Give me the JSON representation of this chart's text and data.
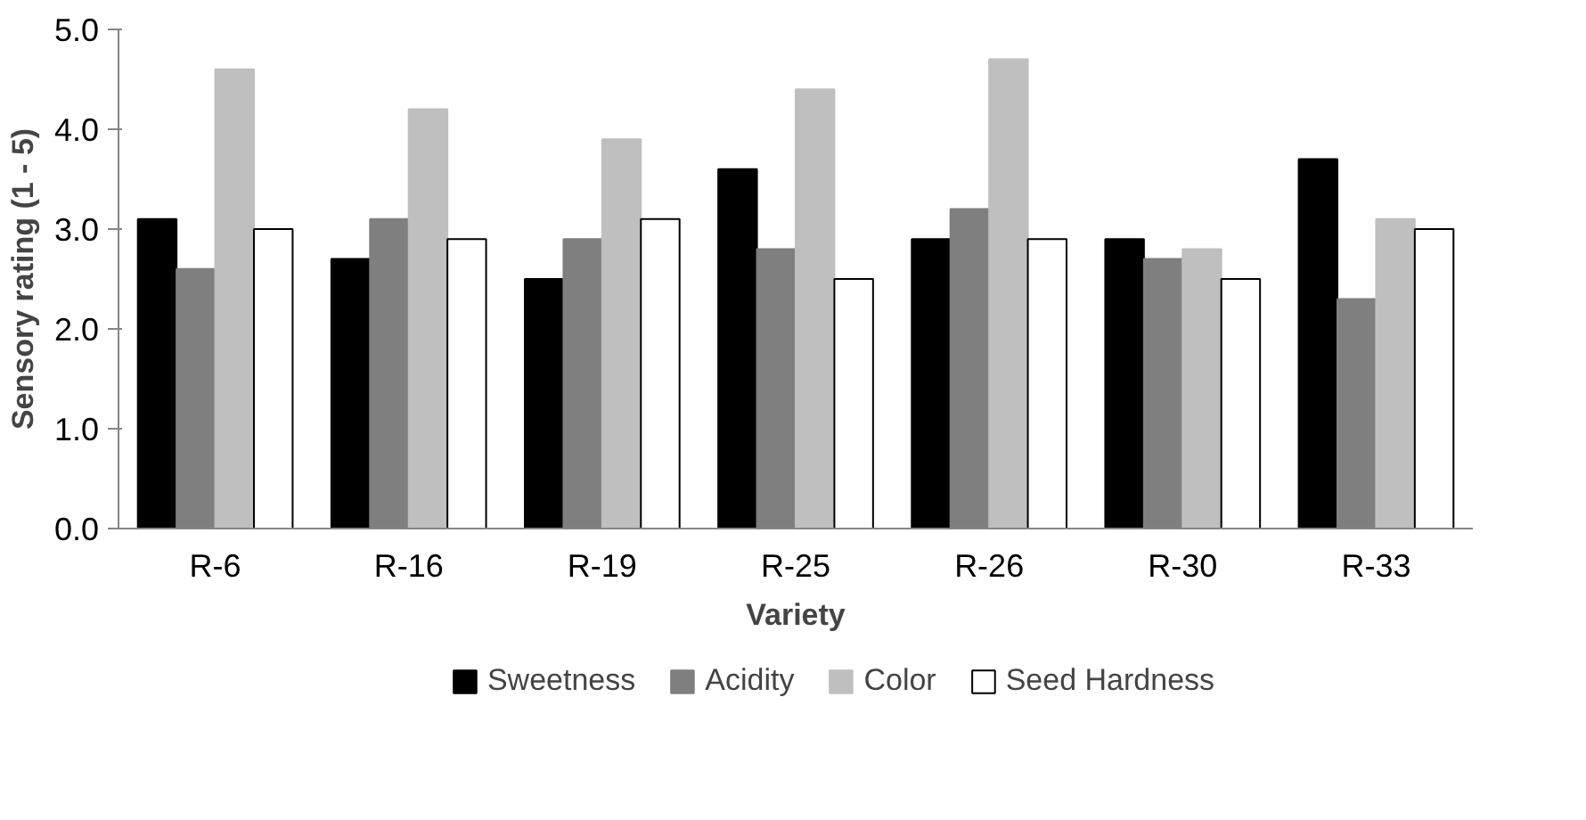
{
  "chart_data": {
    "type": "bar",
    "xlabel": "Variety",
    "ylabel": "Sensory rating (1 - 5)",
    "categories": [
      "R-6",
      "R-16",
      "R-19",
      "R-25",
      "R-26",
      "R-30",
      "R-33"
    ],
    "series": [
      {
        "name": "Sweetness",
        "color": "#000000",
        "values": [
          3.1,
          2.7,
          2.5,
          3.6,
          2.9,
          2.9,
          3.7
        ]
      },
      {
        "name": "Acidity",
        "color": "#7f7f7f",
        "values": [
          2.6,
          3.1,
          2.9,
          2.8,
          3.2,
          2.7,
          2.3
        ]
      },
      {
        "name": "Color",
        "color": "#bfbfbf",
        "values": [
          4.6,
          4.2,
          3.9,
          4.4,
          4.7,
          2.8,
          3.1
        ]
      },
      {
        "name": "Seed Hardness",
        "color": "#ffffff",
        "values": [
          3.0,
          2.9,
          3.1,
          2.5,
          2.9,
          2.5,
          3.0
        ]
      }
    ],
    "ylim": [
      0,
      5
    ],
    "yticks": [
      {
        "value": 0,
        "label": "0.0"
      },
      {
        "value": 1,
        "label": "1.0"
      },
      {
        "value": 2,
        "label": "2.0"
      },
      {
        "value": 3,
        "label": "3.0"
      },
      {
        "value": 4,
        "label": "4.0"
      },
      {
        "value": 5,
        "label": "5.0"
      }
    ],
    "grid": false,
    "legend": "bottom"
  }
}
